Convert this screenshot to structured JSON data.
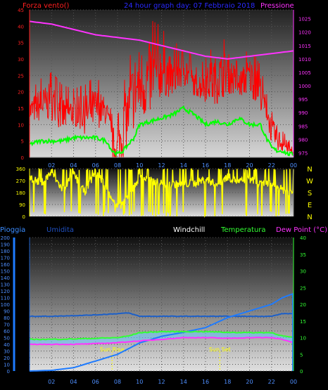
{
  "colors": {
    "wind": "#ff0000",
    "gust_ok": "#00ff00",
    "pressure": "#ff33ff",
    "dir": "#ffff00",
    "rain": "#1e7bff",
    "humidity": "#1c5fc8",
    "temp": "#33ff33",
    "dew": "#ff33ff",
    "windchill": "#66c8ff",
    "axis_text_left": "#ff2020",
    "axis_text_right": "#ff33ff",
    "axis_text_bottom": "#4f8fff",
    "temp_axis_text": "#33ff33",
    "time_text": "#4f8fff",
    "title_blue": "#2a2aff"
  },
  "chart_data": [
    {
      "type": "line",
      "title": "24 hour graph day: 07 Febbraio 2018",
      "left_label": "Forza vento()",
      "right_label": "Pressione",
      "x_ticks": [
        "02",
        "04",
        "06",
        "08",
        "10",
        "12",
        "14",
        "16",
        "18",
        "20",
        "22",
        "00"
      ],
      "left_axis": {
        "ylim": [
          0,
          45
        ],
        "ticks": [
          0,
          5,
          10,
          15,
          20,
          25,
          30,
          35,
          40,
          45
        ]
      },
      "right_axis": {
        "ylim": [
          973.3,
          1028.3
        ],
        "ticks": [
          975,
          980,
          985,
          990,
          995,
          1000,
          1005,
          1010,
          1015,
          1020,
          1025
        ]
      },
      "series": [
        {
          "axis": "left",
          "x": [
            0,
            1,
            2,
            3,
            4,
            5,
            6,
            7,
            7.5,
            8,
            8.5,
            9,
            9.5,
            10,
            11,
            12,
            13,
            14,
            15,
            16,
            17,
            18,
            19,
            20,
            21,
            21.5,
            22,
            22.5,
            23,
            23.5,
            24
          ],
          "values": [
            14,
            16,
            17,
            13,
            14,
            13,
            15,
            14,
            4,
            2,
            8,
            14,
            20,
            22,
            24,
            27,
            24,
            28,
            22,
            22,
            24,
            26,
            22,
            25,
            20,
            15,
            8,
            6,
            4,
            3,
            1
          ],
          "spikes": [
            20,
            24,
            26,
            22,
            21,
            22,
            25,
            20,
            13,
            12,
            22,
            28,
            38,
            40,
            42,
            40,
            33,
            38,
            27,
            30,
            36,
            36,
            28,
            34,
            28,
            20,
            14,
            12,
            8,
            6,
            2
          ]
        },
        {
          "axis": "left",
          "x": [
            0,
            1,
            2,
            3,
            4,
            5,
            6,
            7,
            7.5,
            8,
            8.5,
            9,
            9.5,
            10,
            11,
            12,
            13,
            14,
            15,
            16,
            17,
            18,
            19,
            20,
            21,
            21.5,
            22,
            22.5,
            23,
            23.5,
            24
          ],
          "values": [
            4,
            5,
            5,
            5,
            6,
            6,
            6,
            5,
            2,
            1,
            2,
            4,
            6,
            10,
            11,
            12,
            13,
            15,
            13,
            10,
            11,
            10,
            12,
            10,
            10,
            6,
            3,
            2,
            2,
            1,
            1
          ]
        },
        {
          "axis": "right",
          "x": [
            0,
            2,
            4,
            6,
            8,
            10,
            12,
            14,
            16,
            18,
            20,
            22,
            24
          ],
          "values": [
            1024,
            1023,
            1021,
            1019,
            1018,
            1017,
            1015,
            1013,
            1011,
            1010,
            1011,
            1012,
            1013
          ]
        }
      ]
    },
    {
      "type": "line",
      "y_ticks": [
        "360",
        "270",
        "180",
        "90",
        "0"
      ],
      "compass_labels": [
        "N",
        "W",
        "S",
        "E",
        "N"
      ],
      "ylim": [
        0,
        360
      ],
      "series": [
        {
          "x": [
            0,
            1,
            2,
            3,
            4,
            5,
            6,
            7,
            8,
            9,
            10,
            11,
            12,
            13,
            14,
            15,
            16,
            17,
            18,
            19,
            20,
            21,
            22,
            23,
            24
          ],
          "values": [
            300,
            250,
            330,
            200,
            320,
            180,
            340,
            220,
            60,
            150,
            300,
            270,
            250,
            240,
            245,
            250,
            280,
            240,
            300,
            260,
            280,
            240,
            250,
            200,
            180
          ]
        }
      ]
    },
    {
      "type": "line",
      "legend": [
        "Pioggia",
        "Umidita",
        "Windchill",
        "Temperatura",
        "Dew Point (°C)"
      ],
      "x_ticks": [
        "02",
        "04",
        "06",
        "08",
        "10",
        "12",
        "14",
        "16",
        "18",
        "20",
        "22",
        "00"
      ],
      "annotations": [
        "Sun Rise",
        "Sun Set"
      ],
      "sun_rise_hour": 7.5,
      "sun_set_hour": 17.3,
      "left_axis": {
        "ylim": [
          0,
          200
        ],
        "ticks": [
          0,
          10,
          20,
          30,
          40,
          50,
          60,
          70,
          80,
          90,
          100,
          110,
          120,
          130,
          140,
          150,
          160,
          170,
          180,
          190,
          200
        ]
      },
      "right_axis": {
        "ylim": [
          0,
          40
        ],
        "ticks": [
          0,
          5,
          10,
          15,
          20,
          25,
          30,
          35,
          40
        ]
      },
      "series": [
        {
          "name": "Pioggia",
          "axis": "left",
          "x": [
            0,
            2,
            4,
            6,
            8,
            10,
            12,
            14,
            16,
            18,
            20,
            22,
            23,
            24
          ],
          "values": [
            0,
            1,
            5,
            15,
            25,
            42,
            52,
            58,
            65,
            80,
            90,
            100,
            110,
            116
          ]
        },
        {
          "name": "Umidita",
          "axis": "left",
          "x": [
            0,
            2,
            4,
            6,
            7,
            8,
            9,
            10,
            12,
            14,
            16,
            18,
            20,
            22,
            23,
            24
          ],
          "values": [
            82,
            82,
            83,
            84,
            85,
            86,
            87,
            82,
            82,
            82,
            82,
            82,
            82,
            82,
            86,
            86
          ]
        },
        {
          "name": "Temperatura",
          "axis": "right",
          "x": [
            0,
            2,
            4,
            6,
            8,
            9,
            10,
            12,
            14,
            16,
            18,
            20,
            22,
            23,
            24
          ],
          "values": [
            9.5,
            9.5,
            9.6,
            9.8,
            10,
            10.5,
            11.5,
            11.8,
            11.8,
            11.8,
            11.6,
            11.5,
            11.5,
            10.5,
            10
          ]
        },
        {
          "name": "Dew Point (°C)",
          "axis": "right",
          "x": [
            0,
            2,
            4,
            6,
            8,
            9,
            10,
            12,
            14,
            16,
            18,
            20,
            22,
            23,
            24
          ],
          "values": [
            8,
            8,
            8,
            8.2,
            8.5,
            8.8,
            9,
            9.5,
            10,
            10,
            9.8,
            10,
            10,
            9.5,
            8.5
          ]
        }
      ]
    }
  ]
}
